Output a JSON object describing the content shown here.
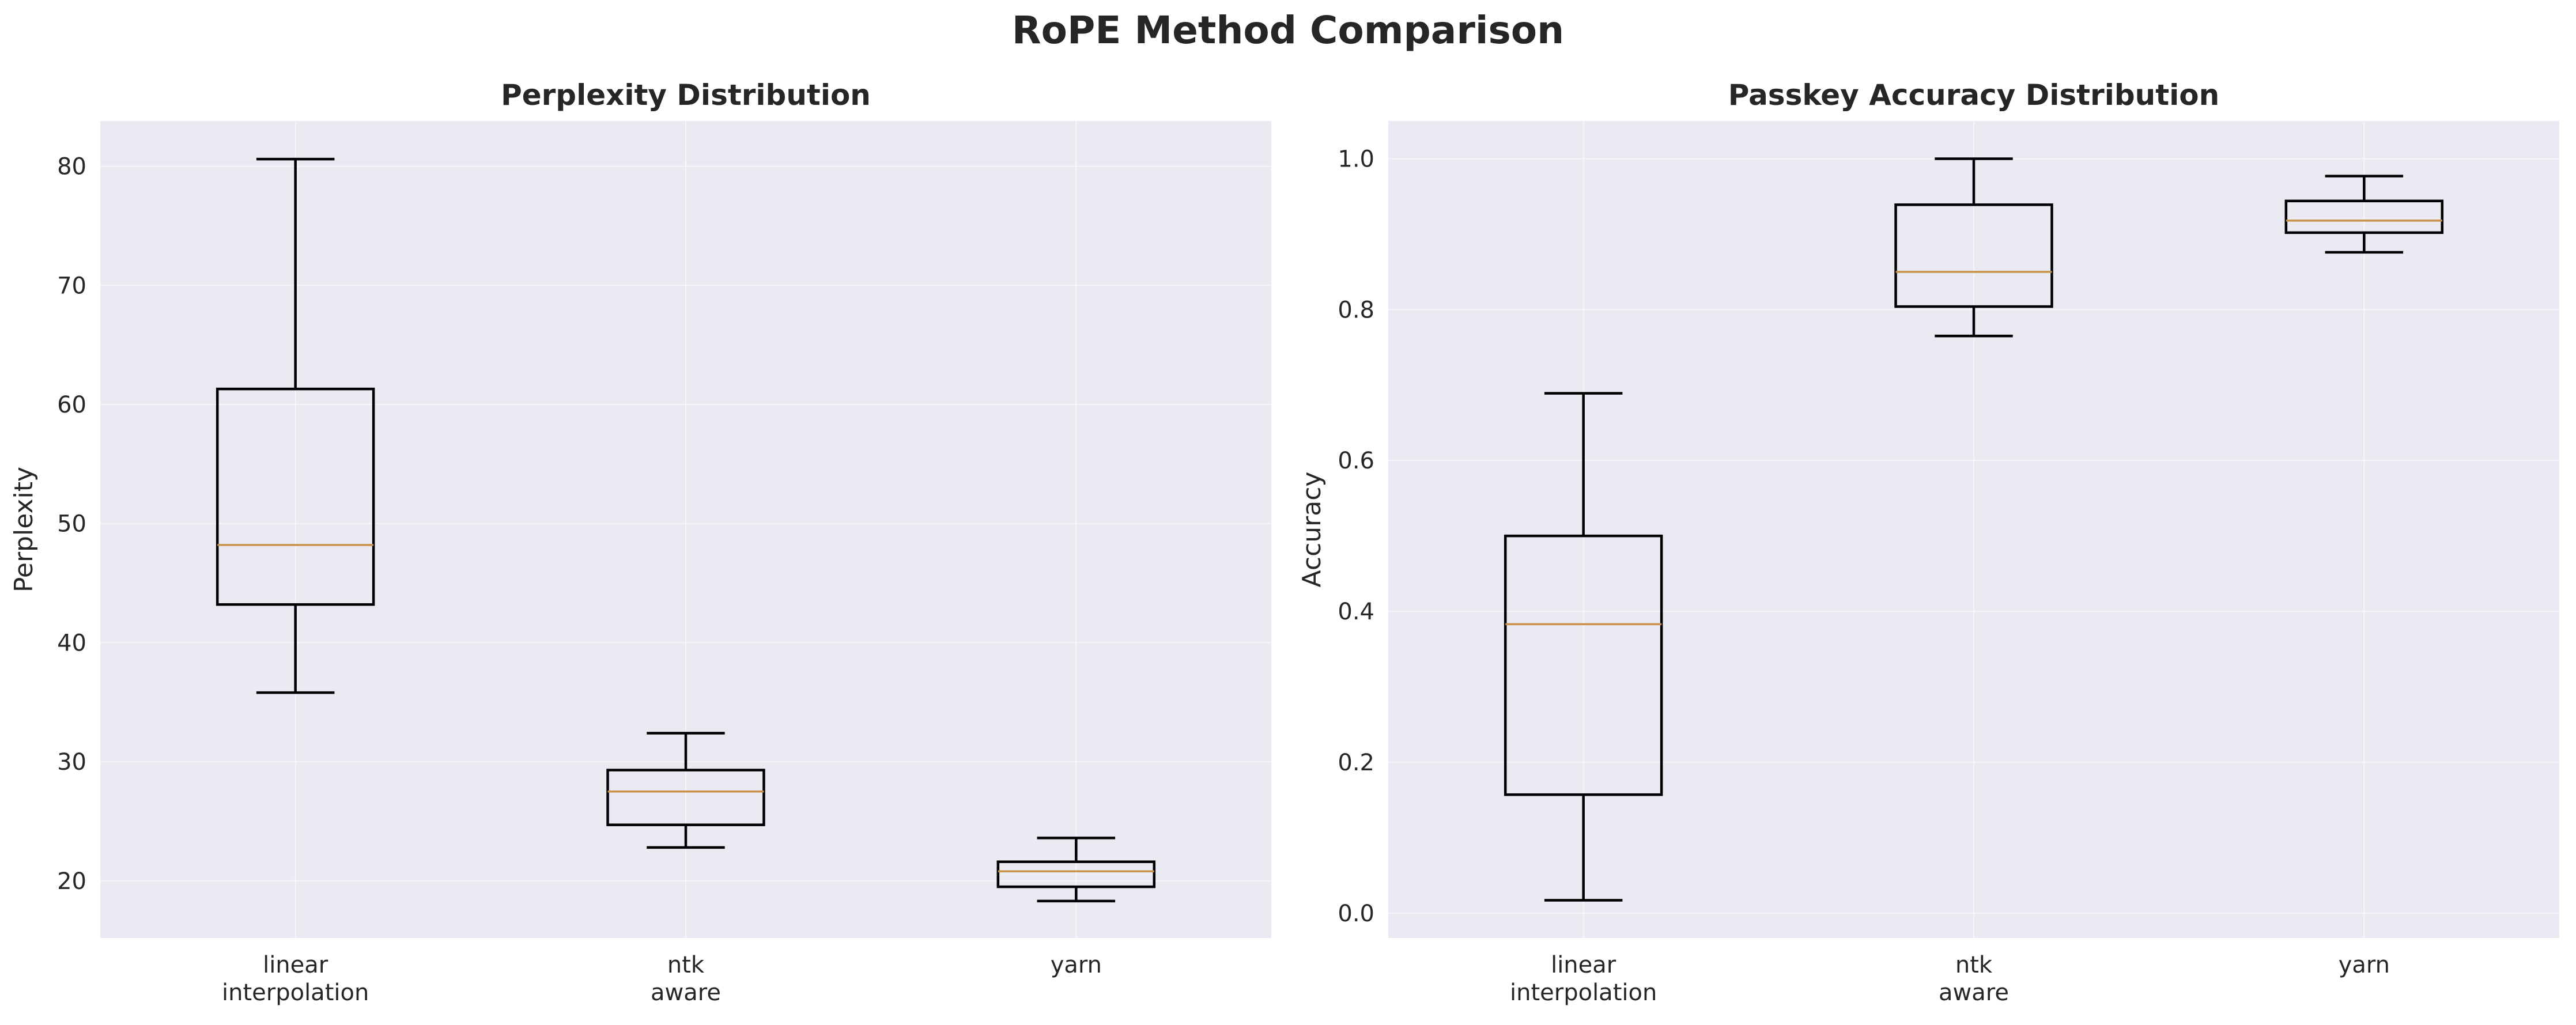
{
  "figure": {
    "title": "RoPE Method Comparison"
  },
  "colors": {
    "background": "#ffffff",
    "plot_background": "#eaeaf2",
    "grid": "#ffffff",
    "box_edge": "#000000",
    "median": "#c8924a",
    "text": "#262626"
  },
  "chart_data": [
    {
      "type": "box",
      "title": "Perplexity Distribution",
      "xlabel": "",
      "ylabel": "Perplexity",
      "categories": [
        [
          "linear",
          "interpolation"
        ],
        [
          "ntk",
          "aware"
        ],
        [
          "yarn"
        ]
      ],
      "ylim": [
        15.2,
        83.8
      ],
      "yticks": [
        20,
        30,
        40,
        50,
        60,
        70,
        80
      ],
      "ytick_labels": [
        "20",
        "30",
        "40",
        "50",
        "60",
        "70",
        "80"
      ],
      "grid": true,
      "boxes": [
        {
          "whislo": 35.8,
          "q1": 43.2,
          "med": 48.2,
          "q3": 61.3,
          "whishi": 80.6
        },
        {
          "whislo": 22.8,
          "q1": 24.7,
          "med": 27.5,
          "q3": 29.3,
          "whishi": 32.4
        },
        {
          "whislo": 18.3,
          "q1": 19.5,
          "med": 20.8,
          "q3": 21.6,
          "whishi": 23.6
        }
      ]
    },
    {
      "type": "box",
      "title": "Passkey Accuracy Distribution",
      "xlabel": "",
      "ylabel": "Accuracy",
      "categories": [
        [
          "linear",
          "interpolation"
        ],
        [
          "ntk",
          "aware"
        ],
        [
          "yarn"
        ]
      ],
      "ylim": [
        -0.033,
        1.05
      ],
      "yticks": [
        0.0,
        0.2,
        0.4,
        0.6,
        0.8,
        1.0
      ],
      "ytick_labels": [
        "0.0",
        "0.2",
        "0.4",
        "0.6",
        "0.8",
        "1.0"
      ],
      "grid": true,
      "boxes": [
        {
          "whislo": 0.017,
          "q1": 0.157,
          "med": 0.383,
          "q3": 0.5,
          "whishi": 0.689
        },
        {
          "whislo": 0.765,
          "q1": 0.804,
          "med": 0.85,
          "q3": 0.939,
          "whishi": 1.0
        },
        {
          "whislo": 0.876,
          "q1": 0.902,
          "med": 0.918,
          "q3": 0.944,
          "whishi": 0.977
        }
      ]
    }
  ]
}
